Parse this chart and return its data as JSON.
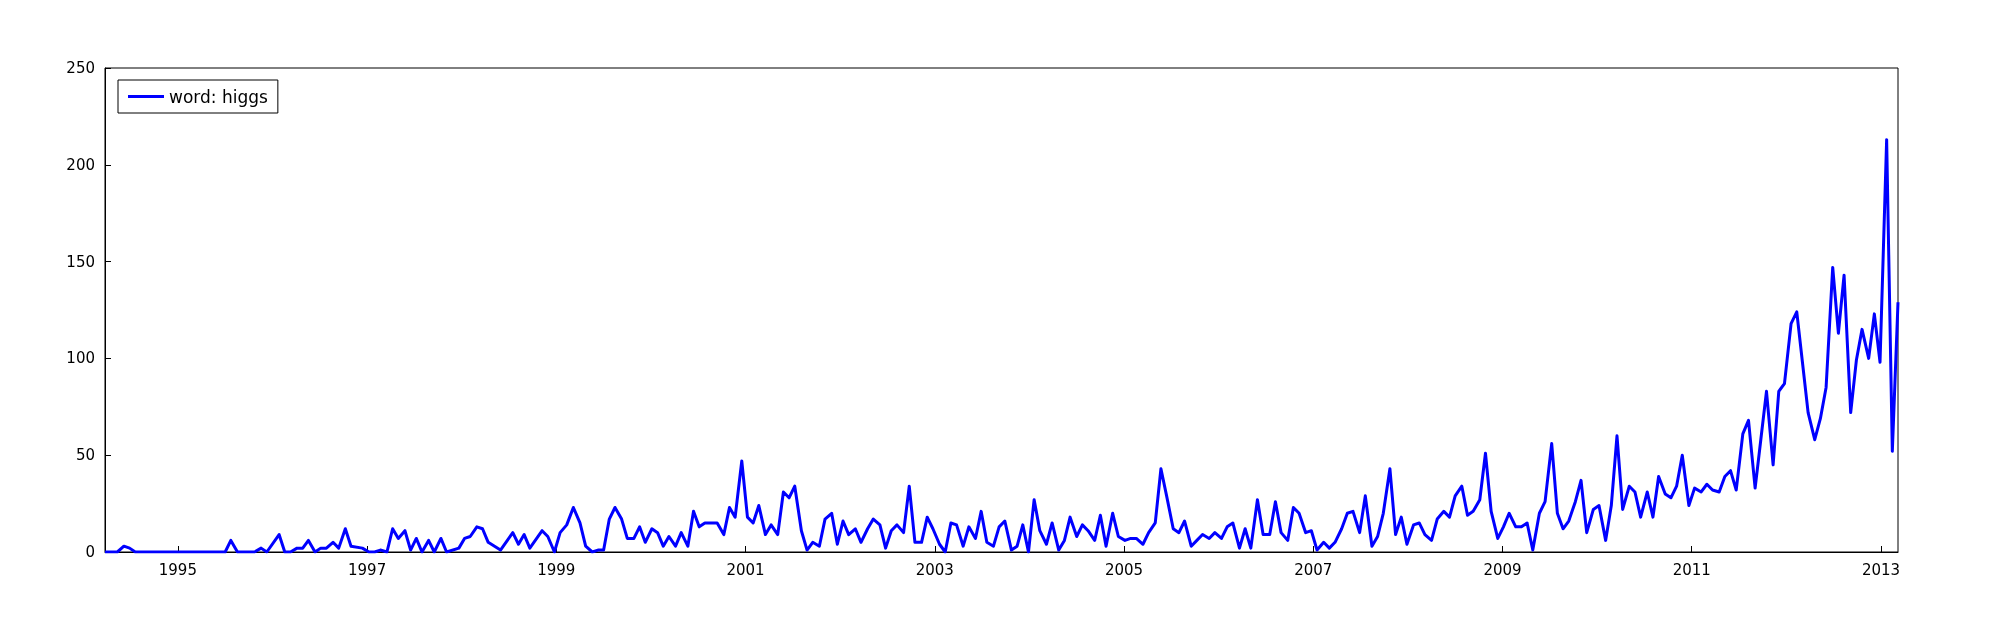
{
  "chart_data": {
    "type": "line",
    "xlim": [
      1994.23,
      2013.18
    ],
    "xticks": [
      1995,
      1997,
      1999,
      2001,
      2003,
      2005,
      2007,
      2009,
      2011,
      2013
    ],
    "ylim": [
      0,
      250
    ],
    "yticks": [
      0,
      50,
      100,
      150,
      200,
      250
    ],
    "grid": false,
    "legend": "top left",
    "marker": "none",
    "line_style": "solid",
    "x": [
      1994.23,
      1994.36,
      1994.43,
      1994.49,
      1994.55,
      1995.5,
      1995.56,
      1995.63,
      1995.81,
      1995.88,
      1995.94,
      1996.07,
      1996.13,
      1996.19,
      1996.26,
      1996.32,
      1996.38,
      1996.45,
      1996.51,
      1996.57,
      1996.64,
      1996.7,
      1996.77,
      1996.83,
      1996.95,
      1997.02,
      1997.08,
      1997.14,
      1997.21,
      1997.27,
      1997.33,
      1997.4,
      1997.46,
      1997.52,
      1997.58,
      1997.65,
      1997.71,
      1997.78,
      1997.84,
      1997.97,
      1998.03,
      1998.09,
      1998.16,
      1998.22,
      1998.28,
      1998.41,
      1998.54,
      1998.6,
      1998.66,
      1998.72,
      1998.85,
      1998.91,
      1998.98,
      1999.04,
      1999.11,
      1999.18,
      1999.25,
      1999.31,
      1999.38,
      1999.44,
      1999.5,
      1999.56,
      1999.62,
      1999.69,
      1999.75,
      1999.82,
      1999.88,
      1999.94,
      2000.01,
      2000.07,
      2000.13,
      2000.19,
      2000.26,
      2000.32,
      2000.39,
      2000.45,
      2000.51,
      2000.57,
      2000.7,
      2000.77,
      2000.83,
      2000.89,
      2000.96,
      2001.02,
      2001.08,
      2001.14,
      2001.21,
      2001.27,
      2001.34,
      2001.4,
      2001.46,
      2001.52,
      2001.59,
      2001.65,
      2001.71,
      2001.78,
      2001.84,
      2001.91,
      2001.97,
      2002.03,
      2002.09,
      2002.16,
      2002.22,
      2002.29,
      2002.35,
      2002.42,
      2002.48,
      2002.54,
      2002.6,
      2002.67,
      2002.73,
      2002.79,
      2002.86,
      2002.92,
      2002.98,
      2003.05,
      2003.11,
      2003.17,
      2003.23,
      2003.3,
      2003.36,
      2003.43,
      2003.49,
      2003.55,
      2003.62,
      2003.68,
      2003.74,
      2003.81,
      2003.87,
      2003.93,
      2003.99,
      2004.05,
      2004.11,
      2004.18,
      2004.24,
      2004.31,
      2004.37,
      2004.43,
      2004.5,
      2004.56,
      2004.62,
      2004.69,
      2004.75,
      2004.81,
      2004.88,
      2004.94,
      2005.01,
      2005.07,
      2005.13,
      2005.2,
      2005.26,
      2005.33,
      2005.39,
      2005.45,
      2005.52,
      2005.58,
      2005.64,
      2005.71,
      2005.77,
      2005.83,
      2005.9,
      2005.96,
      2006.03,
      2006.09,
      2006.15,
      2006.22,
      2006.28,
      2006.34,
      2006.41,
      2006.47,
      2006.54,
      2006.6,
      2006.66,
      2006.73,
      2006.79,
      2006.85,
      2006.92,
      2006.98,
      2007.04,
      2007.11,
      2007.17,
      2007.23,
      2007.3,
      2007.36,
      2007.42,
      2007.49,
      2007.55,
      2007.62,
      2007.68,
      2007.74,
      2007.81,
      2007.87,
      2007.93,
      2007.99,
      2008.06,
      2008.12,
      2008.18,
      2008.25,
      2008.31,
      2008.38,
      2008.44,
      2008.5,
      2008.57,
      2008.63,
      2008.69,
      2008.76,
      2008.82,
      2008.88,
      2008.95,
      2009.01,
      2009.07,
      2009.14,
      2009.2,
      2009.26,
      2009.32,
      2009.39,
      2009.45,
      2009.52,
      2009.58,
      2009.64,
      2009.7,
      2009.77,
      2009.83,
      2009.89,
      2009.96,
      2010.02,
      2010.09,
      2010.15,
      2010.21,
      2010.27,
      2010.34,
      2010.4,
      2010.46,
      2010.53,
      2010.59,
      2010.65,
      2010.72,
      2010.78,
      2010.84,
      2010.9,
      2010.97,
      2011.03,
      2011.1,
      2011.16,
      2011.22,
      2011.29,
      2011.35,
      2011.41,
      2011.47,
      2011.54,
      2011.6,
      2011.67,
      2011.73,
      2011.79,
      2011.86,
      2011.92,
      2011.98,
      2012.05,
      2012.11,
      2012.17,
      2012.23,
      2012.3,
      2012.36,
      2012.42,
      2012.49,
      2012.55,
      2012.61,
      2012.68,
      2012.74,
      2012.8,
      2012.87,
      2012.93,
      2012.99,
      2013.06,
      2013.12,
      2013.18
    ],
    "series": [
      {
        "name": "word: higgs",
        "color": "#0000ff",
        "values": [
          0,
          0,
          3,
          2,
          0,
          0,
          6,
          0,
          0,
          2,
          0,
          9,
          0,
          0,
          2,
          2,
          6,
          0,
          2,
          2,
          5,
          2,
          12,
          3,
          2,
          0,
          0,
          1,
          0,
          12,
          7,
          11,
          1,
          7,
          0,
          6,
          0,
          7,
          0,
          2,
          7,
          8,
          13,
          12,
          5,
          1,
          10,
          4,
          9,
          2,
          11,
          8,
          0,
          10,
          14,
          23,
          15,
          3,
          0,
          1,
          1,
          17,
          23,
          17,
          7,
          7,
          13,
          5,
          12,
          10,
          3,
          8,
          3,
          10,
          3,
          21,
          13,
          15,
          15,
          9,
          23,
          18,
          47,
          18,
          15,
          24,
          9,
          14,
          9,
          31,
          28,
          34,
          11,
          1,
          5,
          3,
          17,
          20,
          4,
          16,
          9,
          12,
          5,
          12,
          17,
          14,
          2,
          11,
          14,
          10,
          34,
          5,
          5,
          18,
          12,
          4,
          0,
          15,
          14,
          3,
          13,
          7,
          21,
          5,
          3,
          13,
          16,
          1,
          3,
          14,
          0,
          27,
          11,
          4,
          15,
          1,
          6,
          18,
          8,
          14,
          11,
          6,
          19,
          3,
          20,
          8,
          6,
          7,
          7,
          4,
          10,
          15,
          43,
          29,
          12,
          10,
          16,
          3,
          6,
          9,
          7,
          10,
          7,
          13,
          15,
          2,
          12,
          2,
          27,
          9,
          9,
          26,
          10,
          6,
          23,
          20,
          10,
          11,
          1,
          5,
          2,
          5,
          12,
          20,
          21,
          10,
          29,
          3,
          8,
          20,
          43,
          9,
          18,
          4,
          14,
          15,
          9,
          6,
          17,
          21,
          18,
          29,
          34,
          19,
          21,
          27,
          51,
          21,
          7,
          13,
          20,
          13,
          13,
          15,
          1,
          20,
          26,
          56,
          20,
          12,
          16,
          26,
          37,
          10,
          22,
          24,
          6,
          24,
          60,
          22,
          34,
          31,
          18,
          31,
          18,
          39,
          30,
          28,
          34,
          50,
          24,
          33,
          31,
          35,
          32,
          31,
          39,
          42,
          32,
          61,
          68,
          33,
          58,
          83,
          45,
          83,
          87,
          118,
          124,
          98,
          72,
          58,
          69,
          85,
          147,
          113,
          143,
          72,
          99,
          115,
          100,
          123,
          98,
          213,
          52,
          129
        ]
      }
    ]
  }
}
